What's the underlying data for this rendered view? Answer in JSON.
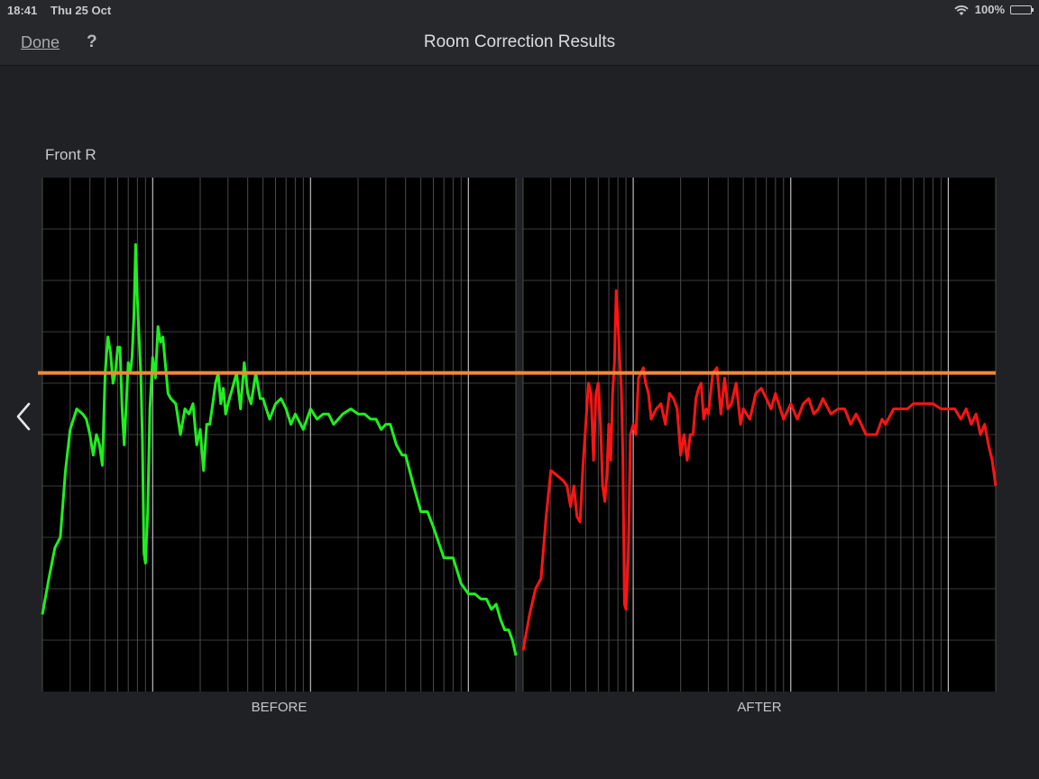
{
  "status_bar": {
    "time": "18:41",
    "date": "Thu 25 Oct",
    "battery": "100%"
  },
  "nav": {
    "done_label": "Done",
    "help_label": "?",
    "title": "Room Correction Results"
  },
  "channel": "Front R",
  "icons": {
    "back": "chevron-left-icon",
    "wifi": "wifi-icon",
    "battery": "battery-icon"
  },
  "colors": {
    "before": "#1ef01e",
    "after": "#ff1414",
    "target": "#f08a3c",
    "background": "#1f2125"
  },
  "chart_data": [
    {
      "type": "line",
      "label": "BEFORE",
      "x_scale": "log",
      "x": [
        20,
        22,
        24,
        26,
        28,
        30,
        33,
        36,
        38,
        40,
        42,
        44,
        46,
        48,
        50,
        52,
        54,
        56,
        58,
        60,
        62,
        64,
        66,
        68,
        70,
        72,
        74,
        76,
        78,
        80,
        82,
        84,
        86,
        88,
        90,
        93,
        96,
        100,
        104,
        108,
        112,
        116,
        120,
        125,
        130,
        140,
        150,
        160,
        170,
        180,
        190,
        200,
        210,
        220,
        230,
        240,
        250,
        260,
        270,
        280,
        290,
        300,
        320,
        340,
        360,
        380,
        400,
        420,
        450,
        480,
        500,
        550,
        600,
        650,
        700,
        750,
        800,
        900,
        1000,
        1100,
        1200,
        1300,
        1400,
        1500,
        1600,
        1800,
        2000,
        2200,
        2400,
        2600,
        2800,
        3000,
        3200,
        3500,
        3800,
        4000,
        4500,
        5000,
        5500,
        6000,
        7000,
        8000,
        9000,
        10000,
        11000,
        12000,
        13000,
        14000,
        15000,
        16000,
        17000,
        18000,
        19000,
        20000
      ],
      "y": [
        1.5,
        2.2,
        2.8,
        3.0,
        4.3,
        5.1,
        5.5,
        5.4,
        5.3,
        5.0,
        4.6,
        5.0,
        4.8,
        4.4,
        6.2,
        6.9,
        6.6,
        6.0,
        6.2,
        6.7,
        6.7,
        5.5,
        4.8,
        5.6,
        6.4,
        6.2,
        6.5,
        7.3,
        8.7,
        7.6,
        6.9,
        6.2,
        4.9,
        2.7,
        2.5,
        3.5,
        5.5,
        6.5,
        6.1,
        7.1,
        6.8,
        6.9,
        6.4,
        5.8,
        5.7,
        5.6,
        5.0,
        5.5,
        5.4,
        5.6,
        4.8,
        5.1,
        4.3,
        5.2,
        5.2,
        5.6,
        6.0,
        6.2,
        5.6,
        5.9,
        5.4,
        5.6,
        5.9,
        6.2,
        5.5,
        6.4,
        5.8,
        5.6,
        6.2,
        5.7,
        5.7,
        5.3,
        5.6,
        5.7,
        5.5,
        5.2,
        5.4,
        5.1,
        5.5,
        5.3,
        5.4,
        5.4,
        5.2,
        5.3,
        5.4,
        5.5,
        5.4,
        5.4,
        5.3,
        5.3,
        5.1,
        5.2,
        5.2,
        4.8,
        4.6,
        4.6,
        4.0,
        3.5,
        3.5,
        3.2,
        2.6,
        2.6,
        2.1,
        1.9,
        1.9,
        1.8,
        1.8,
        1.6,
        1.7,
        1.4,
        1.2,
        1.2,
        1.0,
        0.7
      ]
    },
    {
      "type": "line",
      "label": "AFTER",
      "x_scale": "log",
      "x": [
        20,
        22,
        24,
        26,
        28,
        30,
        33,
        36,
        38,
        40,
        42,
        44,
        46,
        48,
        50,
        52,
        54,
        56,
        58,
        60,
        62,
        64,
        66,
        68,
        70,
        72,
        74,
        76,
        78,
        80,
        82,
        84,
        86,
        88,
        90,
        93,
        96,
        100,
        104,
        108,
        112,
        116,
        120,
        125,
        130,
        140,
        150,
        160,
        170,
        180,
        190,
        200,
        210,
        220,
        230,
        240,
        250,
        260,
        270,
        280,
        290,
        300,
        320,
        340,
        360,
        380,
        400,
        420,
        450,
        480,
        500,
        550,
        600,
        650,
        700,
        750,
        800,
        900,
        1000,
        1100,
        1200,
        1300,
        1400,
        1500,
        1600,
        1800,
        2000,
        2200,
        2400,
        2600,
        2800,
        3000,
        3200,
        3500,
        3800,
        4000,
        4500,
        5000,
        5500,
        6000,
        7000,
        8000,
        9000,
        10000,
        11000,
        12000,
        13000,
        14000,
        15000,
        16000,
        17000,
        18000,
        19000,
        20000
      ],
      "y": [
        0.8,
        1.5,
        2.0,
        2.2,
        3.4,
        4.3,
        4.2,
        4.1,
        4.0,
        3.6,
        4.0,
        3.4,
        3.3,
        4.4,
        5.2,
        6.0,
        5.8,
        4.5,
        5.8,
        6.0,
        5.2,
        4.0,
        3.7,
        4.2,
        5.2,
        4.5,
        5.8,
        6.4,
        7.8,
        7.2,
        6.5,
        5.9,
        4.6,
        1.7,
        1.6,
        2.6,
        5.0,
        5.2,
        5.0,
        6.1,
        6.2,
        6.3,
        6.0,
        5.8,
        5.3,
        5.5,
        5.6,
        5.2,
        5.8,
        5.7,
        5.5,
        4.6,
        5.0,
        4.5,
        5.0,
        5.0,
        5.7,
        5.9,
        6.0,
        5.3,
        5.5,
        5.4,
        6.2,
        6.3,
        5.4,
        6.1,
        5.5,
        5.6,
        6.0,
        5.2,
        5.5,
        5.3,
        5.8,
        5.9,
        5.7,
        5.5,
        5.8,
        5.3,
        5.6,
        5.3,
        5.6,
        5.7,
        5.4,
        5.5,
        5.7,
        5.4,
        5.5,
        5.5,
        5.2,
        5.4,
        5.2,
        5.0,
        5.0,
        5.0,
        5.3,
        5.2,
        5.5,
        5.5,
        5.5,
        5.6,
        5.6,
        5.6,
        5.5,
        5.5,
        5.5,
        5.3,
        5.5,
        5.2,
        5.4,
        5.0,
        5.2,
        4.8,
        4.5,
        4.0
      ]
    }
  ],
  "target_level": 6.2
}
